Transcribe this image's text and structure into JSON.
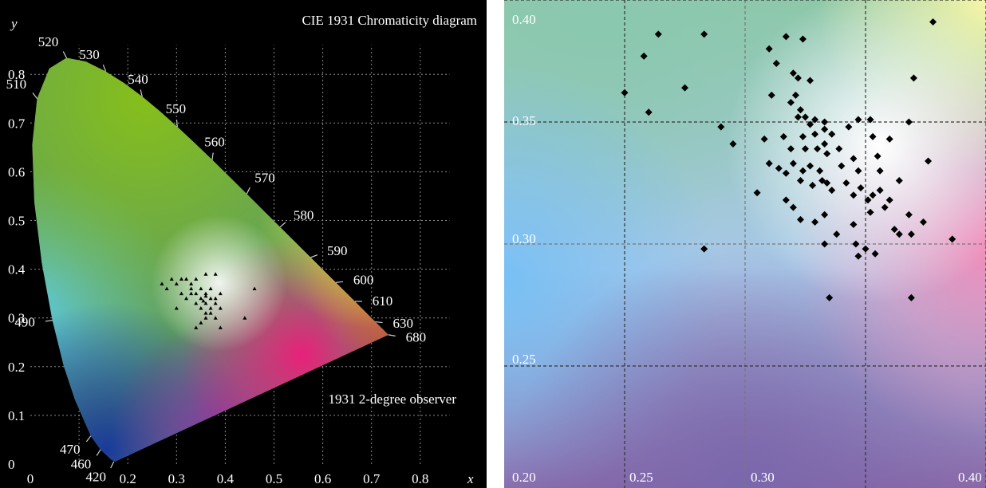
{
  "chart_data": [
    {
      "type": "scatter",
      "title": "CIE 1931 Chromaticity diagram",
      "annotation": "1931 2-degree observer",
      "xlabel": "x",
      "ylabel": "y",
      "xlim": [
        0,
        0.85
      ],
      "ylim": [
        0,
        0.87
      ],
      "grid": true,
      "x_ticks": [
        "0",
        "0.2",
        "0.3",
        "0.4",
        "0.5",
        "0.6",
        "0.7",
        "0.8"
      ],
      "y_ticks": [
        "0",
        "0.1",
        "0.2",
        "0.3",
        "0.4",
        "0.5",
        "0.6",
        "0.7",
        "0.8"
      ],
      "locus_labels": [
        {
          "text": "520",
          "x": 0.0743,
          "y": 0.8338
        },
        {
          "text": "530",
          "x": 0.1547,
          "y": 0.8059
        },
        {
          "text": "540",
          "x": 0.2296,
          "y": 0.7543
        },
        {
          "text": "550",
          "x": 0.3016,
          "y": 0.6923
        },
        {
          "text": "560",
          "x": 0.3731,
          "y": 0.6245
        },
        {
          "text": "570",
          "x": 0.4441,
          "y": 0.5547
        },
        {
          "text": "580",
          "x": 0.5125,
          "y": 0.4866
        },
        {
          "text": "590",
          "x": 0.5752,
          "y": 0.4242
        },
        {
          "text": "600",
          "x": 0.627,
          "y": 0.3725
        },
        {
          "text": "610",
          "x": 0.6658,
          "y": 0.334
        },
        {
          "text": "630",
          "x": 0.708,
          "y": 0.292
        },
        {
          "text": "680",
          "x": 0.7347,
          "y": 0.2653
        },
        {
          "text": "510",
          "x": 0.0139,
          "y": 0.7502
        },
        {
          "text": "490",
          "x": 0.0454,
          "y": 0.295
        },
        {
          "text": "470",
          "x": 0.1241,
          "y": 0.0578
        },
        {
          "text": "460",
          "x": 0.144,
          "y": 0.0297
        },
        {
          "text": "420",
          "x": 0.1714,
          "y": 0.0051
        }
      ],
      "points": [
        [
          0.27,
          0.37
        ],
        [
          0.28,
          0.36
        ],
        [
          0.29,
          0.38
        ],
        [
          0.3,
          0.37
        ],
        [
          0.31,
          0.38
        ],
        [
          0.32,
          0.38
        ],
        [
          0.33,
          0.37
        ],
        [
          0.34,
          0.38
        ],
        [
          0.36,
          0.39
        ],
        [
          0.38,
          0.39
        ],
        [
          0.31,
          0.35
        ],
        [
          0.32,
          0.34
        ],
        [
          0.33,
          0.36
        ],
        [
          0.34,
          0.35
        ],
        [
          0.35,
          0.36
        ],
        [
          0.36,
          0.35
        ],
        [
          0.37,
          0.36
        ],
        [
          0.38,
          0.34
        ],
        [
          0.39,
          0.35
        ],
        [
          0.34,
          0.33
        ],
        [
          0.35,
          0.34
        ],
        [
          0.36,
          0.33
        ],
        [
          0.37,
          0.32
        ],
        [
          0.38,
          0.33
        ],
        [
          0.39,
          0.32
        ],
        [
          0.35,
          0.32
        ],
        [
          0.36,
          0.31
        ],
        [
          0.37,
          0.31
        ],
        [
          0.38,
          0.3
        ],
        [
          0.36,
          0.3
        ],
        [
          0.34,
          0.28
        ],
        [
          0.3,
          0.32
        ],
        [
          0.35,
          0.29
        ],
        [
          0.39,
          0.28
        ],
        [
          0.44,
          0.3
        ],
        [
          0.46,
          0.36
        ],
        [
          0.33,
          0.35
        ],
        [
          0.37,
          0.34
        ],
        [
          0.36,
          0.345
        ],
        [
          0.355,
          0.335
        ]
      ]
    },
    {
      "type": "scatter",
      "xlim": [
        0.2,
        0.4
      ],
      "ylim": [
        0.2,
        0.4
      ],
      "grid": true,
      "x_ticks": [
        "0.20",
        "0.25",
        "0.30",
        "0.40"
      ],
      "y_ticks": [
        "0.40",
        "0.35",
        "0.30",
        "0.25"
      ],
      "points": [
        [
          0.264,
          0.386
        ],
        [
          0.283,
          0.386
        ],
        [
          0.258,
          0.377
        ],
        [
          0.378,
          0.391
        ],
        [
          0.25,
          0.362
        ],
        [
          0.26,
          0.354
        ],
        [
          0.275,
          0.364
        ],
        [
          0.31,
          0.38
        ],
        [
          0.317,
          0.385
        ],
        [
          0.324,
          0.384
        ],
        [
          0.313,
          0.374
        ],
        [
          0.32,
          0.37
        ],
        [
          0.322,
          0.368
        ],
        [
          0.327,
          0.367
        ],
        [
          0.37,
          0.368
        ],
        [
          0.311,
          0.361
        ],
        [
          0.321,
          0.361
        ],
        [
          0.319,
          0.358
        ],
        [
          0.323,
          0.355
        ],
        [
          0.322,
          0.352
        ],
        [
          0.325,
          0.352
        ],
        [
          0.329,
          0.351
        ],
        [
          0.327,
          0.349
        ],
        [
          0.333,
          0.35
        ],
        [
          0.333,
          0.347
        ],
        [
          0.347,
          0.351
        ],
        [
          0.352,
          0.351
        ],
        [
          0.368,
          0.35
        ],
        [
          0.29,
          0.348
        ],
        [
          0.308,
          0.343
        ],
        [
          0.316,
          0.344
        ],
        [
          0.324,
          0.344
        ],
        [
          0.329,
          0.345
        ],
        [
          0.336,
          0.345
        ],
        [
          0.343,
          0.348
        ],
        [
          0.353,
          0.344
        ],
        [
          0.36,
          0.343
        ],
        [
          0.319,
          0.339
        ],
        [
          0.325,
          0.339
        ],
        [
          0.33,
          0.339
        ],
        [
          0.333,
          0.341
        ],
        [
          0.339,
          0.339
        ],
        [
          0.334,
          0.337
        ],
        [
          0.31,
          0.333
        ],
        [
          0.314,
          0.331
        ],
        [
          0.317,
          0.329
        ],
        [
          0.32,
          0.333
        ],
        [
          0.324,
          0.33
        ],
        [
          0.327,
          0.332
        ],
        [
          0.331,
          0.33
        ],
        [
          0.34,
          0.332
        ],
        [
          0.345,
          0.335
        ],
        [
          0.347,
          0.33
        ],
        [
          0.355,
          0.336
        ],
        [
          0.356,
          0.33
        ],
        [
          0.376,
          0.334
        ],
        [
          0.295,
          0.341
        ],
        [
          0.305,
          0.321
        ],
        [
          0.317,
          0.318
        ],
        [
          0.32,
          0.315
        ],
        [
          0.323,
          0.326
        ],
        [
          0.328,
          0.324
        ],
        [
          0.332,
          0.326
        ],
        [
          0.334,
          0.325
        ],
        [
          0.336,
          0.322
        ],
        [
          0.342,
          0.325
        ],
        [
          0.345,
          0.32
        ],
        [
          0.348,
          0.323
        ],
        [
          0.351,
          0.318
        ],
        [
          0.353,
          0.32
        ],
        [
          0.356,
          0.322
        ],
        [
          0.36,
          0.318
        ],
        [
          0.364,
          0.326
        ],
        [
          0.358,
          0.315
        ],
        [
          0.323,
          0.31
        ],
        [
          0.329,
          0.309
        ],
        [
          0.333,
          0.312
        ],
        [
          0.345,
          0.308
        ],
        [
          0.352,
          0.313
        ],
        [
          0.362,
          0.306
        ],
        [
          0.368,
          0.312
        ],
        [
          0.364,
          0.304
        ],
        [
          0.369,
          0.304
        ],
        [
          0.374,
          0.309
        ],
        [
          0.386,
          0.302
        ],
        [
          0.333,
          0.3
        ],
        [
          0.346,
          0.3
        ],
        [
          0.35,
          0.298
        ],
        [
          0.354,
          0.296
        ],
        [
          0.347,
          0.295
        ],
        [
          0.338,
          0.304
        ],
        [
          0.283,
          0.298
        ],
        [
          0.335,
          0.278
        ],
        [
          0.369,
          0.278
        ]
      ]
    }
  ]
}
